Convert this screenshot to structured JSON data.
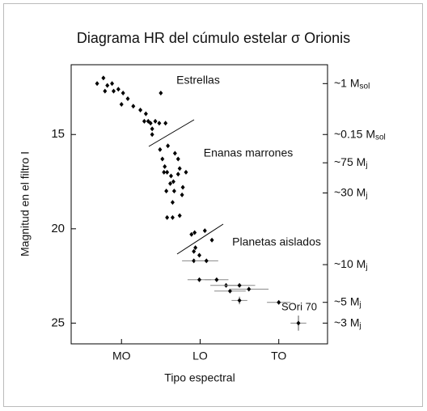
{
  "chart_data": {
    "type": "scatter",
    "title": "Diagrama HR del cúmulo estelar σ Orionis",
    "xlabel": "Tipo espectral",
    "ylabel": "Magnitud en el filtro I",
    "annotations": [
      "Estrellas",
      "Enanas marrones",
      "Planetas aislados",
      "SOri 70"
    ],
    "color": "#000000",
    "xlim": [
      -6.4,
      26.2
    ],
    "ylim": [
      26.1,
      11.3
    ],
    "y2lim": [
      26.1,
      11.3
    ],
    "xticks": [
      {
        "value": 0,
        "label": "MO"
      },
      {
        "value": 10,
        "label": "LO"
      },
      {
        "value": 20,
        "label": "TO"
      }
    ],
    "yticks": [
      15,
      20,
      25
    ],
    "y2ticks": [
      {
        "value": 12.3,
        "label": "~1 M",
        "sub": "sol"
      },
      {
        "value": 15,
        "label": "~0.15 M",
        "sub": "sol"
      },
      {
        "value": 16.5,
        "label": "~75 M",
        "sub": "j"
      },
      {
        "value": 18.1,
        "label": "~30 M",
        "sub": "j"
      },
      {
        "value": 21.9,
        "label": "~10 M",
        "sub": "j"
      },
      {
        "value": 23.9,
        "label": "~5 M",
        "sub": "j"
      },
      {
        "value": 25,
        "label": "~3 M",
        "sub": "j"
      }
    ],
    "x": [
      -3.1,
      -2.3,
      -1.8,
      -1.2,
      -2.1,
      -1.0,
      -0.4,
      0.2,
      0.0,
      0.8,
      1.5,
      2.4,
      3.1,
      2.9,
      3.4,
      3.7,
      3.9,
      4.3,
      4.8,
      5.6,
      3.9,
      5.0,
      4.9,
      5.2,
      5.5,
      5.8,
      6.3,
      5.4,
      6.6,
      5.9,
      6.8,
      7.2,
      7.4,
      6.2,
      6.7,
      6.5,
      7.8,
      5.7,
      7.2,
      8.2,
      5.8,
      6.5,
      7.4,
      7.7,
      8.9,
      9.3,
      9.4,
      9.2,
      9.9,
      10.6,
      11.5,
      9.2,
      10.8,
      9.9,
      12.1,
      13.3,
      13.8,
      15.0,
      15.0,
      16.2,
      20.0,
      22.5
    ],
    "y": [
      12.3,
      12.0,
      12.4,
      12.3,
      12.7,
      12.7,
      12.6,
      12.8,
      13.4,
      13.1,
      13.5,
      13.7,
      13.9,
      14.3,
      14.3,
      14.4,
      14.7,
      14.3,
      14.4,
      14.4,
      15.0,
      12.8,
      15.8,
      16.3,
      16.7,
      17.0,
      17.2,
      17.0,
      17.5,
      15.6,
      16.0,
      16.3,
      16.8,
      17.6,
      18.0,
      18.6,
      17.8,
      18.0,
      17.1,
      17.0,
      19.4,
      19.4,
      19.3,
      18.2,
      20.3,
      20.2,
      21.0,
      21.2,
      21.4,
      20.1,
      20.6,
      21.7,
      21.7,
      22.7,
      22.7,
      23.0,
      23.3,
      23.0,
      23.8,
      23.2,
      23.9,
      25.0
    ],
    "xerr": [
      null,
      null,
      null,
      null,
      null,
      null,
      null,
      null,
      null,
      null,
      null,
      null,
      null,
      null,
      null,
      null,
      null,
      null,
      null,
      null,
      null,
      null,
      null,
      null,
      null,
      null,
      null,
      null,
      null,
      null,
      null,
      null,
      null,
      null,
      null,
      null,
      null,
      null,
      null,
      null,
      null,
      null,
      null,
      null,
      null,
      null,
      null,
      null,
      null,
      null,
      null,
      1.5,
      1.5,
      1.5,
      1.5,
      2,
      2,
      2,
      1,
      2.5,
      1.5,
      1
    ],
    "yerr": [
      null,
      null,
      null,
      null,
      null,
      null,
      null,
      null,
      null,
      null,
      null,
      null,
      null,
      null,
      null,
      null,
      null,
      null,
      null,
      null,
      null,
      null,
      null,
      null,
      null,
      null,
      null,
      null,
      null,
      null,
      null,
      null,
      null,
      null,
      null,
      null,
      null,
      null,
      null,
      null,
      null,
      null,
      null,
      null,
      null,
      null,
      null,
      null,
      null,
      null,
      null,
      null,
      null,
      null,
      null,
      null,
      null,
      null,
      0.2,
      null,
      0.1,
      0.4
    ]
  }
}
